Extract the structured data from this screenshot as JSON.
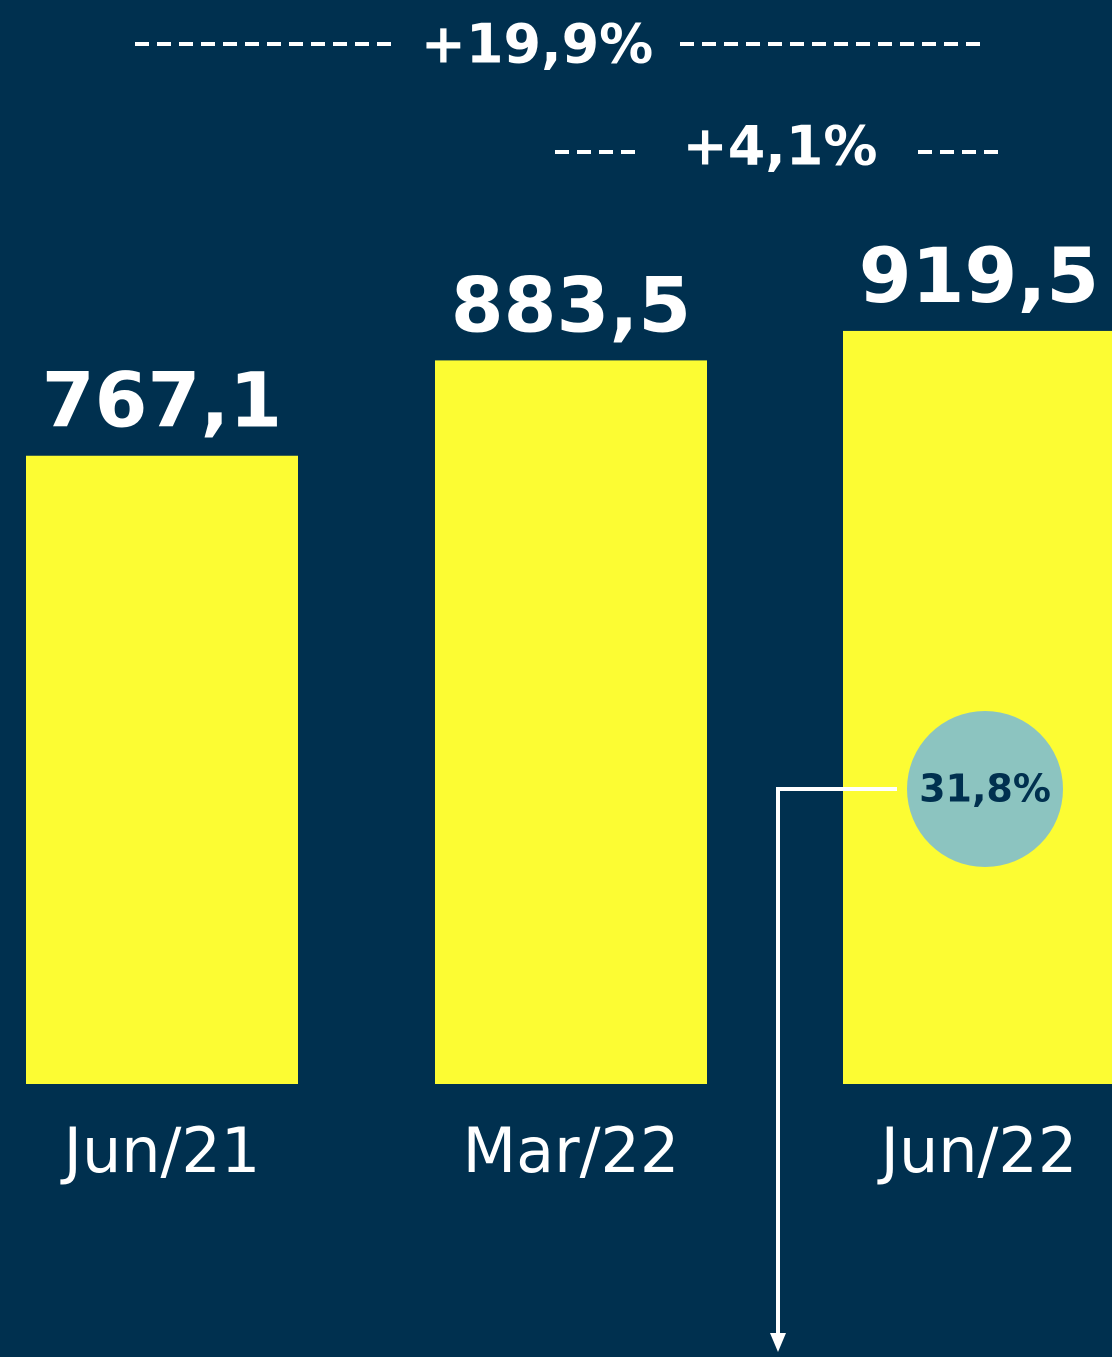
{
  "chart_data": {
    "type": "bar",
    "categories": [
      "Jun/21",
      "Mar/22",
      "Jun/22"
    ],
    "values": [
      767.1,
      883.5,
      919.5
    ],
    "value_labels": [
      "767,1",
      "883,5",
      "919,5"
    ],
    "color": "#fcfc33",
    "annotations": [
      "+19,9%",
      "+4,1%",
      "31,8%"
    ]
  }
}
